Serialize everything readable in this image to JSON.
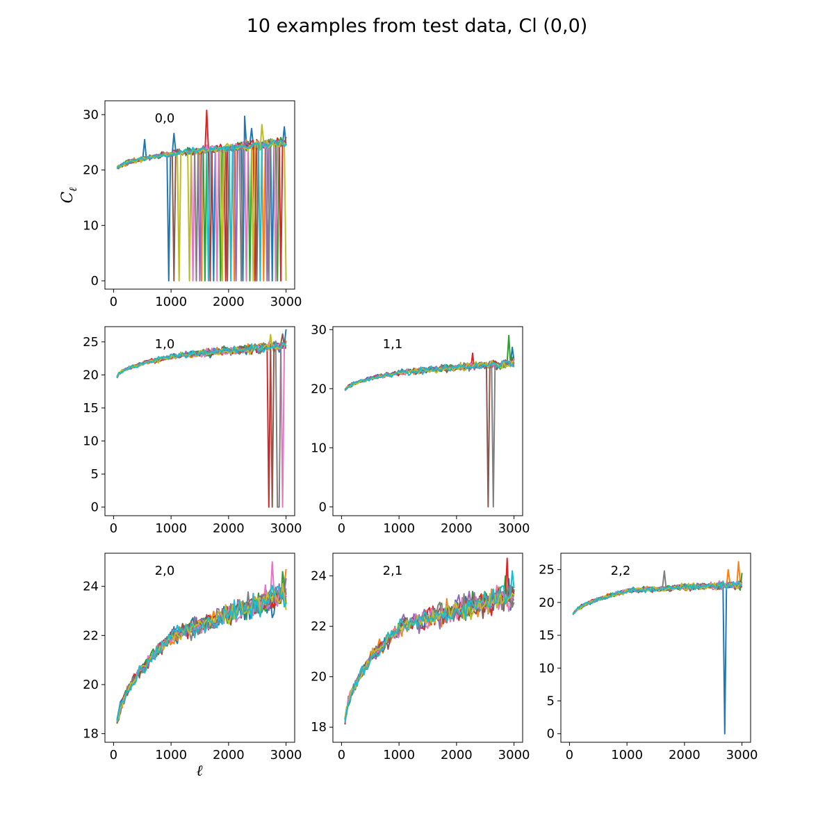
{
  "figure": {
    "title": "10 examples from test data, Cl (0,0)",
    "xlabel": "ℓ",
    "ylabel": "C",
    "ylabel_sub": "ℓ"
  },
  "colors": [
    "#1f77b4",
    "#ff7f0e",
    "#2ca02c",
    "#d62728",
    "#9467bd",
    "#8c564b",
    "#e377c2",
    "#7f7f7f",
    "#bcbd22",
    "#17becf"
  ],
  "chart_data": [
    {
      "type": "line",
      "panel": "0,0",
      "title": "0,0",
      "n_series": 10,
      "xlim": [
        -150,
        3150
      ],
      "ylim": [
        -1.5,
        32.5
      ],
      "xticks": [
        0,
        1000,
        2000,
        3000
      ],
      "yticks": [
        0,
        10,
        20,
        30
      ],
      "curve": {
        "start": 20.0,
        "mid": 23.0,
        "end": 25.0,
        "noise": 0.5
      },
      "x_start": 60,
      "x_end": 3000,
      "step": 30,
      "spikes": [
        [
          1620,
          30.8,
          3
        ],
        [
          2290,
          29.7,
          0
        ],
        [
          2590,
          28.2,
          8
        ],
        [
          2960,
          27.8,
          0
        ],
        [
          2390,
          27.5,
          0
        ],
        [
          540,
          25.5,
          0
        ],
        [
          1050,
          26.6,
          0
        ]
      ],
      "dropouts": [
        [
          960,
          0
        ],
        [
          1040,
          5
        ],
        [
          1130,
          8
        ],
        [
          1320,
          8
        ],
        [
          1390,
          6
        ],
        [
          1440,
          7
        ],
        [
          1490,
          4
        ],
        [
          1540,
          1
        ],
        [
          1580,
          2
        ],
        [
          1640,
          9
        ],
        [
          1690,
          3
        ],
        [
          1740,
          0
        ],
        [
          1790,
          6
        ],
        [
          1850,
          2
        ],
        [
          1890,
          8
        ],
        [
          1940,
          3
        ],
        [
          1990,
          5
        ],
        [
          2040,
          9
        ],
        [
          2090,
          1
        ],
        [
          2140,
          4
        ],
        [
          2210,
          7
        ],
        [
          2250,
          0
        ],
        [
          2310,
          6
        ],
        [
          2360,
          2
        ],
        [
          2420,
          8
        ],
        [
          2460,
          3
        ],
        [
          2500,
          5
        ],
        [
          2560,
          9
        ],
        [
          2610,
          1
        ],
        [
          2660,
          4
        ],
        [
          2710,
          7
        ],
        [
          2760,
          0
        ],
        [
          2810,
          6
        ],
        [
          2860,
          2
        ],
        [
          2920,
          3
        ],
        [
          2990,
          8
        ]
      ]
    },
    {
      "type": "line",
      "panel": "1,0",
      "title": "1,0",
      "n_series": 10,
      "xlim": [
        -150,
        3150
      ],
      "ylim": [
        -1.3,
        27.3
      ],
      "xticks": [
        0,
        1000,
        2000,
        3000
      ],
      "yticks": [
        0,
        5,
        10,
        15,
        20,
        25
      ],
      "curve": {
        "start": 19.5,
        "mid": 22.8,
        "end": 24.5,
        "noise": 0.4
      },
      "x_start": 60,
      "x_end": 3000,
      "step": 30,
      "spikes": [
        [
          2990,
          26.9,
          0
        ],
        [
          2870,
          26.6,
          7
        ],
        [
          2930,
          26.2,
          5
        ],
        [
          2720,
          26.1,
          8
        ]
      ],
      "dropouts": [
        [
          2700,
          3
        ],
        [
          2760,
          5
        ],
        [
          2840,
          7
        ],
        [
          2890,
          7
        ],
        [
          2950,
          6
        ]
      ]
    },
    {
      "type": "line",
      "panel": "1,1",
      "title": "1,1",
      "n_series": 10,
      "xlim": [
        -150,
        3150
      ],
      "ylim": [
        -1.5,
        30.5
      ],
      "xticks": [
        0,
        1000,
        2000,
        3000
      ],
      "yticks": [
        0,
        10,
        20,
        30
      ],
      "curve": {
        "start": 19.5,
        "mid": 22.8,
        "end": 24.3,
        "noise": 0.4
      },
      "x_start": 60,
      "x_end": 3000,
      "step": 30,
      "spikes": [
        [
          2900,
          29.0,
          2
        ],
        [
          2960,
          27.0,
          0
        ],
        [
          2280,
          26.0,
          3
        ]
      ],
      "dropouts": [
        [
          2540,
          5
        ],
        [
          2640,
          7
        ]
      ]
    },
    {
      "type": "line",
      "panel": "2,0",
      "title": "2,0",
      "n_series": 10,
      "xlim": [
        -150,
        3150
      ],
      "ylim": [
        17.65,
        25.35
      ],
      "xticks": [
        0,
        1000,
        2000,
        3000
      ],
      "yticks": [
        18,
        20,
        22,
        24
      ],
      "curve": {
        "start": 18.0,
        "mid": 22.0,
        "end": 23.7,
        "noise": 0.3
      },
      "x_start": 60,
      "x_end": 3000,
      "step": 30,
      "spikes": [
        [
          2760,
          25.0,
          6
        ],
        [
          2990,
          24.7,
          1
        ],
        [
          2930,
          24.6,
          2
        ]
      ],
      "dropouts": []
    },
    {
      "type": "line",
      "panel": "2,1",
      "title": "2,1",
      "n_series": 10,
      "xlim": [
        -150,
        3150
      ],
      "ylim": [
        17.4,
        24.9
      ],
      "xticks": [
        0,
        1000,
        2000,
        3000
      ],
      "yticks": [
        18,
        20,
        22,
        24
      ],
      "curve": {
        "start": 17.9,
        "mid": 22.0,
        "end": 23.3,
        "noise": 0.3
      },
      "x_start": 60,
      "x_end": 3000,
      "step": 30,
      "spikes": [
        [
          2890,
          24.7,
          3
        ],
        [
          2960,
          24.2,
          9
        ]
      ],
      "dropouts": []
    },
    {
      "type": "line",
      "panel": "2,2",
      "title": "2,2",
      "n_series": 10,
      "xlim": [
        -150,
        3150
      ],
      "ylim": [
        -1.3,
        27.5
      ],
      "xticks": [
        0,
        1000,
        2000,
        3000
      ],
      "yticks": [
        0,
        5,
        10,
        15,
        20,
        25
      ],
      "curve": {
        "start": 17.8,
        "mid": 21.8,
        "end": 22.8,
        "noise": 0.35
      },
      "x_start": 60,
      "x_end": 3000,
      "step": 30,
      "spikes": [
        [
          1650,
          24.8,
          7
        ],
        [
          2940,
          26.2,
          1
        ],
        [
          2750,
          25.0,
          1
        ],
        [
          2990,
          24.5,
          2
        ]
      ],
      "dropouts": [
        [
          2700,
          0
        ]
      ]
    }
  ]
}
